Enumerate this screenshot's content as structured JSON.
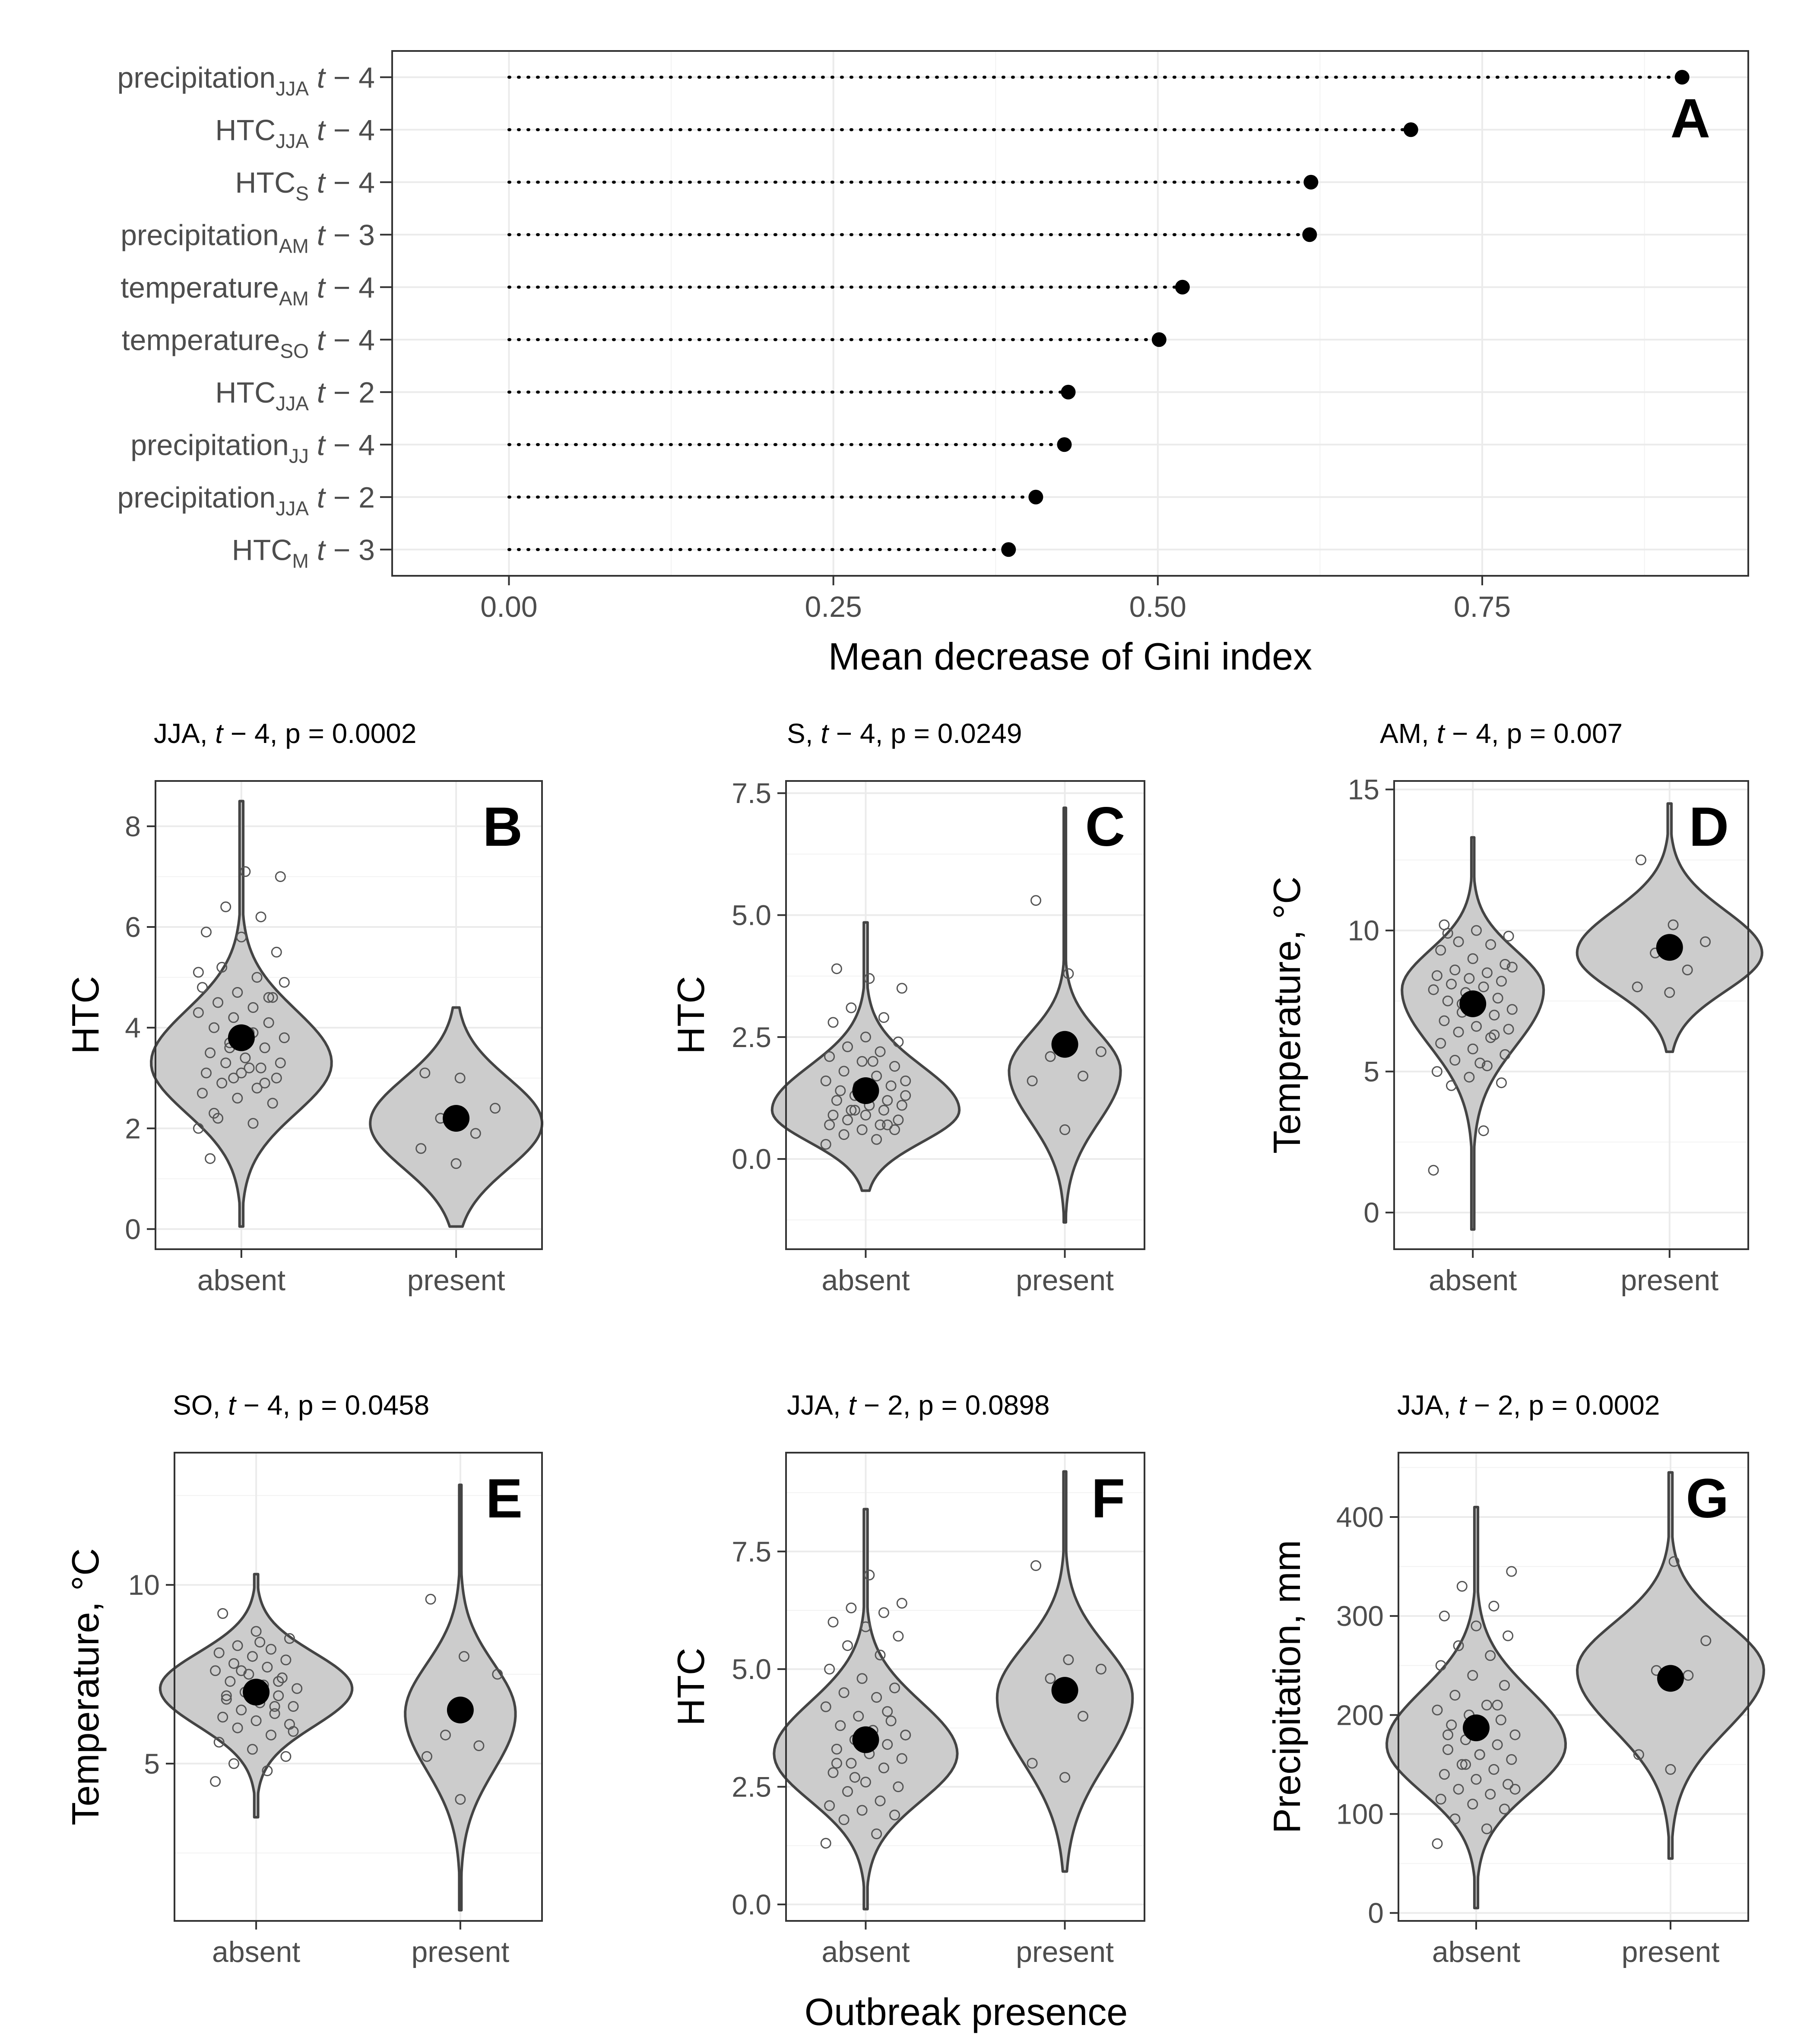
{
  "colors": {
    "violin_fill": "#cccccc",
    "violin_stroke": "#444444",
    "mean_point": "#000000",
    "grid_major": "#ebebeb",
    "panel_border": "#333333"
  },
  "chart_data": [
    {
      "type": "lollipop",
      "panel": "A",
      "xlabel": "Mean decrease of Gini index",
      "xlim": [
        -0.09,
        0.955
      ],
      "xticks": [
        "0.00",
        "0.25",
        "0.50",
        "0.75"
      ],
      "tick_values": [
        0,
        0.25,
        0.5,
        0.75
      ],
      "variables": [
        {
          "base": "precipitation",
          "sub": "JJA",
          "lag": "4",
          "value": 0.904
        },
        {
          "base": "HTC",
          "sub": "JJA",
          "lag": "4",
          "value": 0.695
        },
        {
          "base": "HTC",
          "sub": "S",
          "lag": "4",
          "value": 0.618
        },
        {
          "base": "precipitation",
          "sub": "AM",
          "lag": "3",
          "value": 0.617
        },
        {
          "base": "temperature",
          "sub": "AM",
          "lag": "4",
          "value": 0.519
        },
        {
          "base": "temperature",
          "sub": "SO",
          "lag": "4",
          "value": 0.501
        },
        {
          "base": "HTC",
          "sub": "JJA",
          "lag": "2",
          "value": 0.431
        },
        {
          "base": "precipitation",
          "sub": "JJ",
          "lag": "4",
          "value": 0.428
        },
        {
          "base": "precipitation",
          "sub": "JJA",
          "lag": "2",
          "value": 0.406
        },
        {
          "base": "HTC",
          "sub": "M",
          "lag": "3",
          "value": 0.385
        }
      ]
    },
    {
      "type": "violin",
      "panel": "B",
      "title_season": "JJA",
      "title_lag": "4",
      "title_p": "p = 0.0002",
      "ylabel": "HTC",
      "ylim": [
        -0.4,
        8.9
      ],
      "yticks": [
        "0",
        "2",
        "4",
        "6",
        "8"
      ],
      "ytick_values": [
        0,
        2,
        4,
        6,
        8
      ],
      "categories": [
        "absent",
        "present"
      ],
      "groups": [
        {
          "name": "absent",
          "min": 0.05,
          "max": 8.5,
          "mode": 3.3,
          "sd_low": 1.0,
          "sd_high": 1.05,
          "halfwidth": 0.42,
          "mean": 3.8,
          "points": [
            2.0,
            2.1,
            2.2,
            2.5,
            2.6,
            2.7,
            2.8,
            2.9,
            3.0,
            3.1,
            3.1,
            3.2,
            3.3,
            3.3,
            3.4,
            3.5,
            3.6,
            3.7,
            3.8,
            3.9,
            4.0,
            4.1,
            4.2,
            4.3,
            4.4,
            4.5,
            4.6,
            4.7,
            4.8,
            5.0,
            5.2,
            5.5,
            5.8,
            5.9,
            6.2,
            6.4,
            7.0,
            7.1,
            1.4,
            2.9,
            3.6,
            4.9,
            3.2,
            2.3,
            4.6,
            3.0,
            5.1,
            3.9
          ]
        },
        {
          "name": "present",
          "min": 0.05,
          "max": 4.4,
          "mode": 2.1,
          "sd_low": 0.9,
          "sd_high": 0.9,
          "halfwidth": 0.4,
          "mean": 2.2,
          "points": [
            1.3,
            1.6,
            1.9,
            2.2,
            2.4,
            3.0,
            3.1
          ]
        }
      ]
    },
    {
      "type": "violin",
      "panel": "C",
      "title_season": "S",
      "title_lag": "4",
      "title_p": "p = 0.0249",
      "ylabel": "HTC",
      "ylim": [
        -1.85,
        7.75
      ],
      "yticks": [
        "0.0",
        "2.5",
        "5.0",
        "7.5"
      ],
      "ytick_values": [
        0,
        2.5,
        5,
        7.5
      ],
      "categories": [
        "absent",
        "present"
      ],
      "groups": [
        {
          "name": "absent",
          "min": -0.65,
          "max": 4.85,
          "mode": 1.0,
          "sd_low": 0.65,
          "sd_high": 0.9,
          "halfwidth": 0.47,
          "mean": 1.4,
          "points": [
            0.3,
            0.4,
            0.5,
            0.6,
            0.6,
            0.7,
            0.7,
            0.8,
            0.8,
            0.9,
            0.9,
            1.0,
            1.0,
            1.1,
            1.1,
            1.2,
            1.2,
            1.3,
            1.3,
            1.4,
            1.4,
            1.5,
            1.5,
            1.6,
            1.7,
            1.8,
            1.9,
            2.0,
            2.1,
            2.2,
            2.3,
            2.4,
            2.5,
            2.8,
            2.9,
            3.1,
            3.5,
            3.7,
            3.9,
            0.7,
            1.0,
            1.6,
            2.0
          ]
        },
        {
          "name": "present",
          "min": -1.3,
          "max": 7.2,
          "mode": 1.8,
          "sd_low": 1.05,
          "sd_high": 0.8,
          "halfwidth": 0.28,
          "mean": 2.35,
          "points": [
            0.6,
            1.6,
            1.7,
            2.1,
            2.2,
            3.8,
            5.3
          ]
        }
      ]
    },
    {
      "type": "violin",
      "panel": "D",
      "title_season": "AM",
      "title_lag": "4",
      "title_p": "p = 0.007",
      "ylabel": "Temperature, °C",
      "ylim": [
        -1.3,
        15.3
      ],
      "yticks": [
        "0",
        "5",
        "10",
        "15"
      ],
      "ytick_values": [
        0,
        5,
        10,
        15
      ],
      "categories": [
        "absent",
        "present"
      ],
      "groups": [
        {
          "name": "absent",
          "min": -0.6,
          "max": 13.3,
          "mode": 7.9,
          "sd_low": 2.0,
          "sd_high": 1.4,
          "halfwidth": 0.36,
          "mean": 7.4,
          "points": [
            1.5,
            2.9,
            4.5,
            4.6,
            4.8,
            5.0,
            5.2,
            5.4,
            5.6,
            5.8,
            6.0,
            6.2,
            6.4,
            6.5,
            6.6,
            6.8,
            7.0,
            7.1,
            7.2,
            7.3,
            7.5,
            7.6,
            7.8,
            7.9,
            8.0,
            8.1,
            8.2,
            8.3,
            8.4,
            8.5,
            8.6,
            8.8,
            9.0,
            9.3,
            9.5,
            9.6,
            9.8,
            10.0,
            10.2,
            6.3,
            7.4,
            8.7,
            5.3,
            9.9
          ]
        },
        {
          "name": "present",
          "min": 5.7,
          "max": 14.5,
          "mode": 9.2,
          "sd_low": 1.35,
          "sd_high": 1.5,
          "halfwidth": 0.47,
          "mean": 9.4,
          "points": [
            7.8,
            8.0,
            8.6,
            9.2,
            9.6,
            10.2,
            12.5
          ]
        }
      ]
    },
    {
      "type": "violin",
      "panel": "E",
      "title_season": "SO",
      "title_lag": "4",
      "title_p": "p = 0.0458",
      "ylabel": "Temperature, °C",
      "ylim": [
        0.6,
        13.7
      ],
      "yticks": [
        "5",
        "10"
      ],
      "ytick_values": [
        5,
        10
      ],
      "categories": [
        "absent",
        "present"
      ],
      "groups": [
        {
          "name": "absent",
          "min": 3.5,
          "max": 10.3,
          "mode": 7.1,
          "sd_low": 1.05,
          "sd_high": 1.0,
          "halfwidth": 0.47,
          "mean": 7.0,
          "points": [
            4.5,
            4.8,
            5.0,
            5.2,
            5.4,
            5.6,
            5.8,
            6.0,
            6.1,
            6.2,
            6.3,
            6.4,
            6.5,
            6.6,
            6.7,
            6.8,
            6.9,
            7.0,
            7.1,
            7.2,
            7.3,
            7.4,
            7.5,
            7.6,
            7.7,
            7.8,
            7.9,
            8.0,
            8.1,
            8.2,
            8.3,
            8.5,
            8.7,
            9.2,
            6.6,
            7.6,
            5.9,
            8.4,
            6.9,
            7.3
          ]
        },
        {
          "name": "present",
          "min": 0.9,
          "max": 12.8,
          "mode": 6.4,
          "sd_low": 1.6,
          "sd_high": 1.4,
          "halfwidth": 0.27,
          "mean": 6.5,
          "points": [
            4.0,
            5.2,
            5.5,
            5.8,
            7.5,
            8.0,
            9.6
          ]
        }
      ]
    },
    {
      "type": "violin",
      "panel": "F",
      "title_season": "JJA",
      "title_lag": "2",
      "title_p": "p = 0.0898",
      "ylabel": "HTC",
      "ylim": [
        -0.35,
        9.6
      ],
      "yticks": [
        "0.0",
        "2.5",
        "5.0",
        "7.5"
      ],
      "ytick_values": [
        0,
        2.5,
        5,
        7.5
      ],
      "categories": [
        "absent",
        "present"
      ],
      "groups": [
        {
          "name": "absent",
          "min": -0.1,
          "max": 8.4,
          "mode": 3.2,
          "sd_low": 1.0,
          "sd_high": 1.1,
          "halfwidth": 0.46,
          "mean": 3.5,
          "points": [
            1.3,
            1.5,
            1.8,
            1.9,
            2.0,
            2.1,
            2.2,
            2.4,
            2.5,
            2.6,
            2.8,
            2.9,
            3.0,
            3.1,
            3.2,
            3.3,
            3.4,
            3.5,
            3.6,
            3.7,
            3.8,
            3.9,
            4.0,
            4.2,
            4.4,
            4.5,
            4.6,
            4.8,
            5.0,
            5.3,
            5.5,
            5.7,
            5.9,
            6.0,
            6.2,
            6.3,
            6.4,
            7.0,
            3.0,
            4.1,
            2.7,
            3.6
          ]
        },
        {
          "name": "present",
          "min": 0.7,
          "max": 9.2,
          "mode": 4.4,
          "sd_low": 1.4,
          "sd_high": 1.1,
          "halfwidth": 0.34,
          "mean": 4.55,
          "points": [
            2.7,
            3.0,
            4.0,
            4.8,
            5.0,
            5.2,
            7.2
          ]
        }
      ]
    },
    {
      "type": "violin",
      "panel": "G",
      "title_season": "JJA",
      "title_lag": "2",
      "title_p": "p = 0.0002",
      "ylabel": "Precipitation, mm",
      "ylim": [
        -8,
        465
      ],
      "yticks": [
        "0",
        "100",
        "200",
        "300",
        "400"
      ],
      "ytick_values": [
        0,
        100,
        200,
        300,
        400
      ],
      "categories": [
        "absent",
        "present"
      ],
      "groups": [
        {
          "name": "absent",
          "min": 5,
          "max": 410,
          "mode": 170,
          "sd_low": 48,
          "sd_high": 55,
          "halfwidth": 0.46,
          "mean": 187,
          "points": [
            70,
            85,
            95,
            105,
            110,
            115,
            120,
            125,
            130,
            135,
            140,
            145,
            150,
            155,
            160,
            165,
            170,
            175,
            180,
            185,
            190,
            195,
            200,
            205,
            210,
            220,
            230,
            240,
            250,
            260,
            270,
            280,
            290,
            300,
            310,
            330,
            345,
            160,
            180,
            210,
            150,
            125
          ]
        },
        {
          "name": "present",
          "min": 55,
          "max": 445,
          "mode": 245,
          "sd_low": 60,
          "sd_high": 48,
          "halfwidth": 0.48,
          "mean": 237,
          "points": [
            145,
            160,
            240,
            245,
            275,
            355
          ]
        }
      ]
    }
  ],
  "shared_xlabel": "Outbreak presence"
}
